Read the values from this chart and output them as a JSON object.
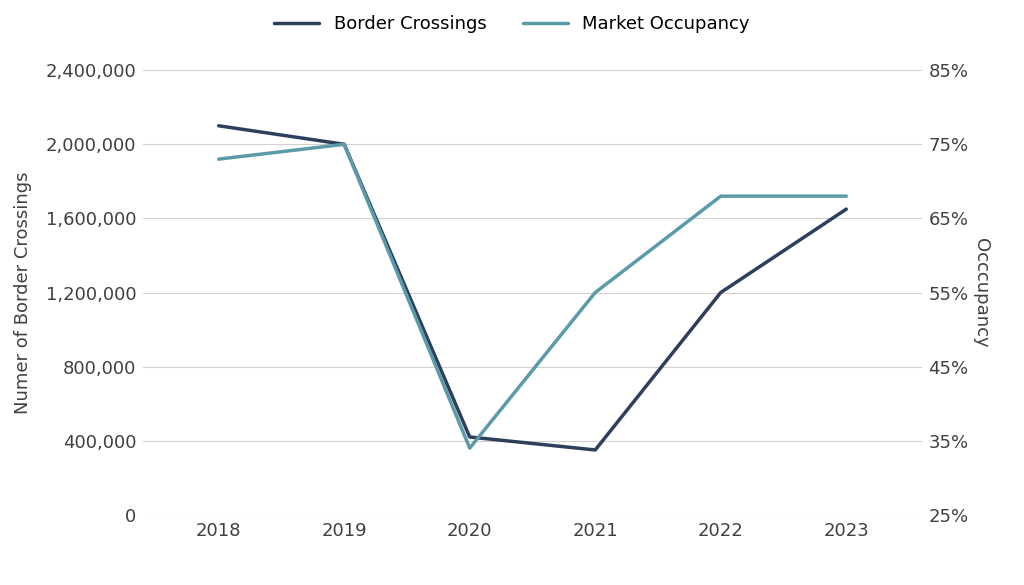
{
  "years": [
    2018,
    2019,
    2020,
    2021,
    2022,
    2023
  ],
  "border_crossings": [
    2100000,
    2000000,
    420000,
    350000,
    1200000,
    1650000
  ],
  "market_occupancy": [
    0.73,
    0.75,
    0.34,
    0.55,
    0.68,
    0.68
  ],
  "border_color": "#2E3F5C",
  "occupancy_color": "#5B9AA8",
  "left_ylim": [
    0,
    2400000
  ],
  "left_yticks": [
    0,
    400000,
    800000,
    1200000,
    1600000,
    2000000,
    2400000
  ],
  "right_ylim": [
    0.25,
    0.85
  ],
  "right_yticks": [
    0.25,
    0.35,
    0.45,
    0.55,
    0.65,
    0.75,
    0.85
  ],
  "ylabel_left": "Numer of Border Crossings",
  "ylabel_right": "Occcupancy",
  "legend_border": "Border Crossings",
  "legend_occupancy": "Market Occupancy",
  "line_width": 2.5,
  "background_color": "#ffffff",
  "grid_color": "#d0d0d0",
  "font_color": "#404040",
  "font_size": 13
}
